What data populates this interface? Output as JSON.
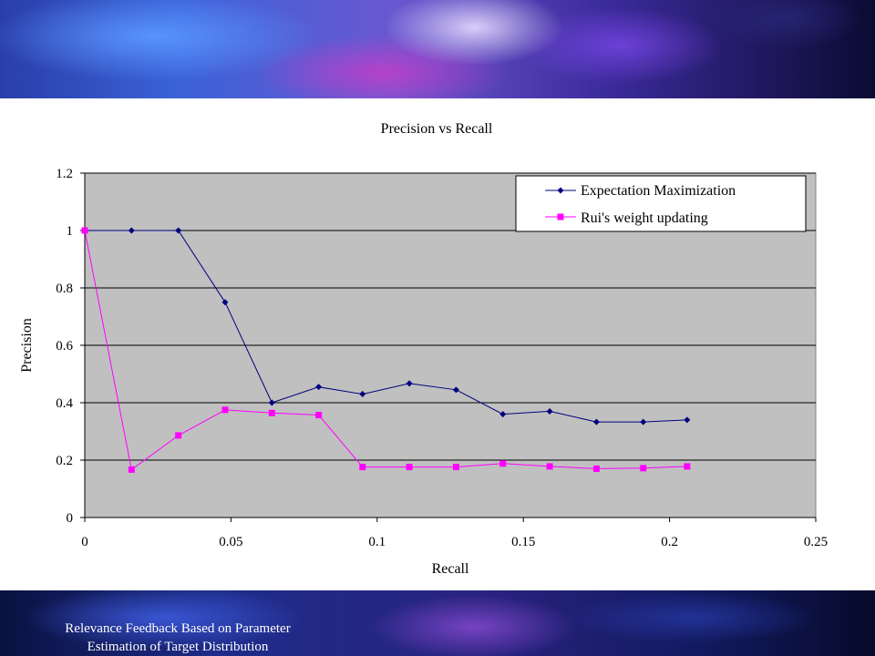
{
  "footer": {
    "line1": "Relevance Feedback Based on Parameter",
    "line2": "Estimation of Target Distribution"
  },
  "colors": {
    "plot_bg": "#C0C0C0",
    "series1": "#00007F",
    "series2": "#FF00FF",
    "grid": "#000000"
  },
  "chart_data": {
    "type": "line",
    "title": "Precision vs Recall",
    "xlabel": "Recall",
    "ylabel": "Precision",
    "xlim": [
      0,
      0.25
    ],
    "ylim": [
      0,
      1.2
    ],
    "xticks": [
      "0",
      "0.05",
      "0.1",
      "0.15",
      "0.2",
      "0.25"
    ],
    "yticks": [
      "0",
      "0.2",
      "0.4",
      "0.6",
      "0.8",
      "1",
      "1.2"
    ],
    "grid": true,
    "legend_position": "top-right",
    "series": [
      {
        "name": "Expectation Maximization",
        "marker": "diamond",
        "x": [
          0,
          0.016,
          0.032,
          0.048,
          0.064,
          0.08,
          0.095,
          0.111,
          0.127,
          0.143,
          0.159,
          0.175,
          0.191,
          0.206
        ],
        "y": [
          1.0,
          1.0,
          1.0,
          0.75,
          0.4,
          0.455,
          0.43,
          0.467,
          0.445,
          0.36,
          0.37,
          0.333,
          0.333,
          0.34
        ]
      },
      {
        "name": "Rui's weight updating",
        "marker": "square",
        "x": [
          0,
          0.016,
          0.032,
          0.048,
          0.064,
          0.08,
          0.095,
          0.111,
          0.127,
          0.143,
          0.159,
          0.175,
          0.191,
          0.206
        ],
        "y": [
          1.0,
          0.167,
          0.286,
          0.375,
          0.364,
          0.357,
          0.176,
          0.176,
          0.176,
          0.188,
          0.178,
          0.17,
          0.172,
          0.178
        ]
      }
    ]
  }
}
